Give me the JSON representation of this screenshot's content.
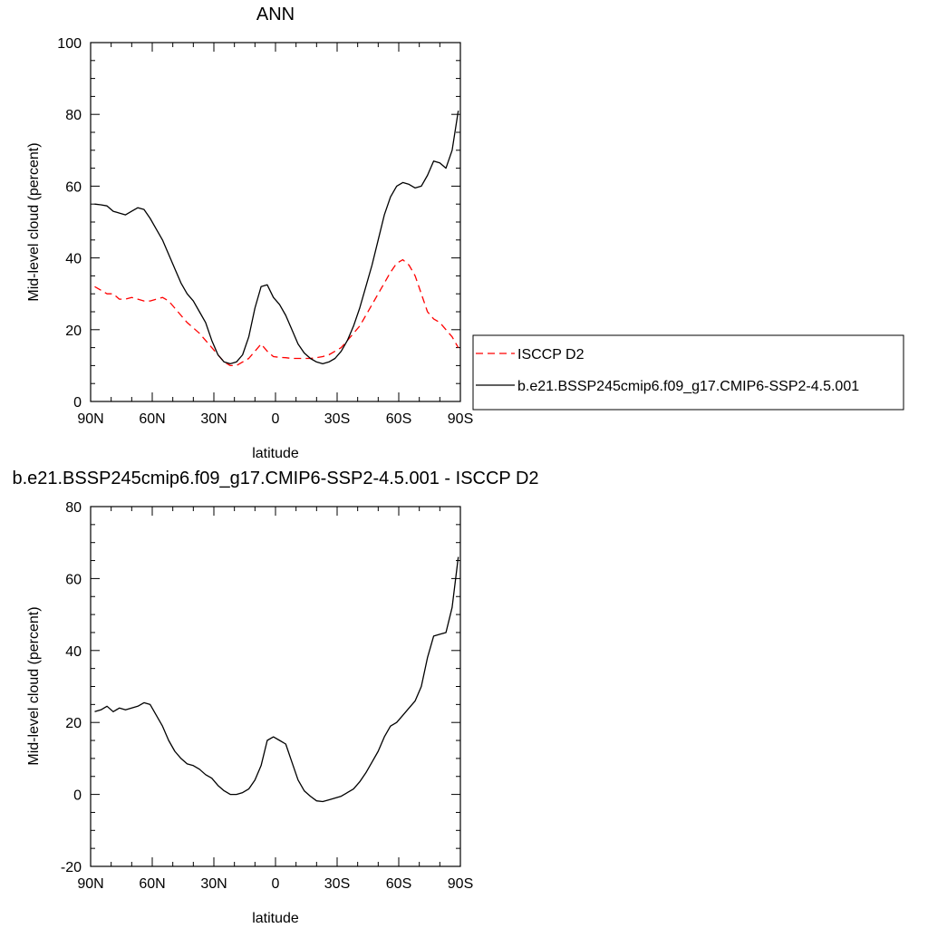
{
  "chart_data": [
    {
      "type": "line",
      "title": "ANN",
      "xlabel": "latitude",
      "ylabel": "Mid-level cloud (percent)",
      "xlim": [
        90,
        -90
      ],
      "ylim": [
        0,
        100
      ],
      "x_ticks": [
        90,
        60,
        30,
        0,
        -30,
        -60,
        -90
      ],
      "x_tick_labels": [
        "90N",
        "60N",
        "30N",
        "0",
        "30S",
        "60S",
        "90S"
      ],
      "y_ticks": [
        0,
        20,
        40,
        60,
        80,
        100
      ],
      "y_tick_labels": [
        "0",
        "20",
        "40",
        "60",
        "80",
        "100"
      ],
      "legend_position": "right",
      "series": [
        {
          "name": "ISCCP D2",
          "color": "#ff0000",
          "dash": "dashed",
          "x": [
            88,
            85,
            82,
            79,
            76,
            73,
            70,
            67,
            64,
            61,
            58,
            55,
            52,
            49,
            46,
            43,
            40,
            37,
            34,
            31,
            28,
            25,
            22,
            19,
            16,
            13,
            10,
            7,
            4,
            1,
            -2,
            -5,
            -8,
            -11,
            -14,
            -17,
            -20,
            -23,
            -26,
            -29,
            -32,
            -35,
            -38,
            -41,
            -44,
            -47,
            -50,
            -53,
            -56,
            -59,
            -62,
            -65,
            -68,
            -71,
            -74,
            -77,
            -80,
            -83,
            -86,
            -89
          ],
          "y": [
            32,
            31,
            30,
            30,
            28.5,
            28.5,
            29,
            28.5,
            28,
            28,
            28.5,
            29,
            28,
            26,
            24,
            22,
            20.5,
            19,
            17,
            15,
            13,
            11,
            10,
            10,
            11,
            12,
            14,
            16,
            14,
            12.5,
            12.3,
            12.2,
            12,
            12,
            12,
            12,
            12.2,
            12.5,
            13,
            14,
            15,
            17,
            19,
            21,
            24,
            27,
            30,
            33,
            36,
            38.5,
            39.5,
            38,
            35,
            30,
            25,
            23,
            22,
            20,
            18,
            15
          ]
        },
        {
          "name": "b.e21.BSSP245cmip6.f09_g17.CMIP6-SSP2-4.5.001",
          "color": "#000000",
          "dash": "solid",
          "x": [
            88,
            85,
            82,
            79,
            76,
            73,
            70,
            67,
            64,
            61,
            58,
            55,
            52,
            49,
            46,
            43,
            40,
            37,
            34,
            31,
            28,
            25,
            22,
            19,
            16,
            13,
            10,
            7,
            4,
            1,
            -2,
            -5,
            -8,
            -11,
            -14,
            -17,
            -20,
            -23,
            -26,
            -29,
            -32,
            -35,
            -38,
            -41,
            -44,
            -47,
            -50,
            -53,
            -56,
            -59,
            -62,
            -65,
            -68,
            -71,
            -74,
            -77,
            -80,
            -83,
            -86,
            -89
          ],
          "y": [
            55,
            54.8,
            54.5,
            53,
            52.5,
            52,
            53,
            54,
            53.5,
            51,
            48,
            45,
            41,
            37,
            33,
            30,
            28,
            25,
            22,
            17,
            13,
            11,
            10.5,
            11,
            13,
            18,
            26,
            32,
            32.5,
            29,
            27,
            24,
            20,
            16,
            13.5,
            12,
            11,
            10.5,
            11,
            12,
            14,
            17,
            21,
            26,
            32,
            38,
            45,
            52,
            57,
            60,
            61,
            60.5,
            59.5,
            60,
            63,
            67,
            66.5,
            65,
            70,
            81
          ]
        }
      ]
    },
    {
      "type": "line",
      "title": "b.e21.BSSP245cmip6.f09_g17.CMIP6-SSP2-4.5.001 - ISCCP D2",
      "xlabel": "latitude",
      "ylabel": "Mid-level cloud (percent)",
      "xlim": [
        90,
        -90
      ],
      "ylim": [
        -20,
        80
      ],
      "x_ticks": [
        90,
        60,
        30,
        0,
        -30,
        -60,
        -90
      ],
      "x_tick_labels": [
        "90N",
        "60N",
        "30N",
        "0",
        "30S",
        "60S",
        "90S"
      ],
      "y_ticks": [
        -20,
        0,
        20,
        40,
        60,
        80
      ],
      "y_tick_labels": [
        "-20",
        "0",
        "20",
        "40",
        "60",
        "80"
      ],
      "series": [
        {
          "color": "#000000",
          "dash": "solid",
          "x": [
            88,
            85,
            82,
            79,
            76,
            73,
            70,
            67,
            64,
            61,
            58,
            55,
            52,
            49,
            46,
            43,
            40,
            37,
            34,
            31,
            28,
            25,
            22,
            19,
            16,
            13,
            10,
            7,
            4,
            1,
            -2,
            -5,
            -8,
            -11,
            -14,
            -17,
            -20,
            -23,
            -26,
            -29,
            -32,
            -35,
            -38,
            -41,
            -44,
            -47,
            -50,
            -53,
            -56,
            -59,
            -62,
            -65,
            -68,
            -71,
            -74,
            -77,
            -80,
            -83,
            -86,
            -89
          ],
          "y": [
            23,
            23.5,
            24.5,
            23,
            24,
            23.5,
            24,
            24.5,
            25.5,
            25,
            22,
            19,
            15,
            12,
            10,
            8.5,
            8,
            7,
            5.5,
            4.5,
            2.5,
            1,
            0,
            0,
            0.5,
            1.5,
            4,
            8,
            15,
            16,
            15,
            14,
            9,
            4,
            1,
            -0.5,
            -1.8,
            -2,
            -1.5,
            -1,
            -0.5,
            0.5,
            1.5,
            3.5,
            6,
            9,
            12,
            16,
            19,
            20,
            22,
            24,
            26,
            30,
            38,
            44,
            44.5,
            45,
            52,
            66
          ]
        }
      ]
    }
  ]
}
